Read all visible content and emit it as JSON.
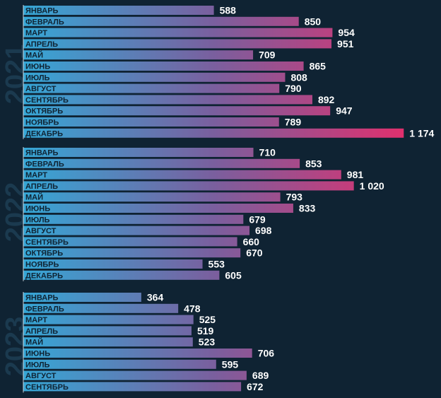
{
  "colors": {
    "background": "#0f2333",
    "bar_start": "#35a7d6",
    "bar_mid": "#7a5f9e",
    "bar_end": "#e0306e",
    "year_text": "#1b3a4f",
    "value_text": "#ffffff"
  },
  "chart_data": [
    {
      "type": "bar",
      "orientation": "horizontal",
      "year": "2021",
      "categories": [
        "ЯНВАРЬ",
        "ФЕВРАЛЬ",
        "МАРТ",
        "АПРЕЛЬ",
        "МАЙ",
        "ИЮНЬ",
        "ИЮЛЬ",
        "АВГУСТ",
        "СЕНТЯБРЬ",
        "ОКТЯБРЬ",
        "НОЯБРЬ",
        "ДЕКАБРЬ"
      ],
      "values": [
        588,
        850,
        954,
        951,
        709,
        865,
        808,
        790,
        892,
        947,
        789,
        1174
      ],
      "value_labels": [
        "588",
        "850",
        "954",
        "951",
        "709",
        "865",
        "808",
        "790",
        "892",
        "947",
        "789",
        "1 174"
      ]
    },
    {
      "type": "bar",
      "orientation": "horizontal",
      "year": "2022",
      "categories": [
        "ЯНВАРЬ",
        "ФЕВРАЛЬ",
        "МАРТ",
        "АПРЕЛЬ",
        "МАЙ",
        "ИЮНЬ",
        "ИЮЛЬ",
        "АВГУСТ",
        "СЕНТЯБРЬ",
        "ОКТЯБРЬ",
        "НОЯБРЬ",
        "ДЕКАБРЬ"
      ],
      "values": [
        710,
        853,
        981,
        1020,
        793,
        833,
        679,
        698,
        660,
        670,
        553,
        605
      ],
      "value_labels": [
        "710",
        "853",
        "981",
        "1 020",
        "793",
        "833",
        "679",
        "698",
        "660",
        "670",
        "553",
        "605"
      ]
    },
    {
      "type": "bar",
      "orientation": "horizontal",
      "year": "2023",
      "categories": [
        "ЯНВАРЬ",
        "ФЕВРАЛЬ",
        "МАРТ",
        "АПРЕЛЬ",
        "МАЙ",
        "ИЮНЬ",
        "ИЮЛЬ",
        "АВГУСТ",
        "СЕНТЯБРЬ"
      ],
      "values": [
        364,
        478,
        525,
        519,
        523,
        706,
        595,
        689,
        672
      ],
      "value_labels": [
        "364",
        "478",
        "525",
        "519",
        "523",
        "706",
        "595",
        "689",
        "672"
      ]
    }
  ]
}
